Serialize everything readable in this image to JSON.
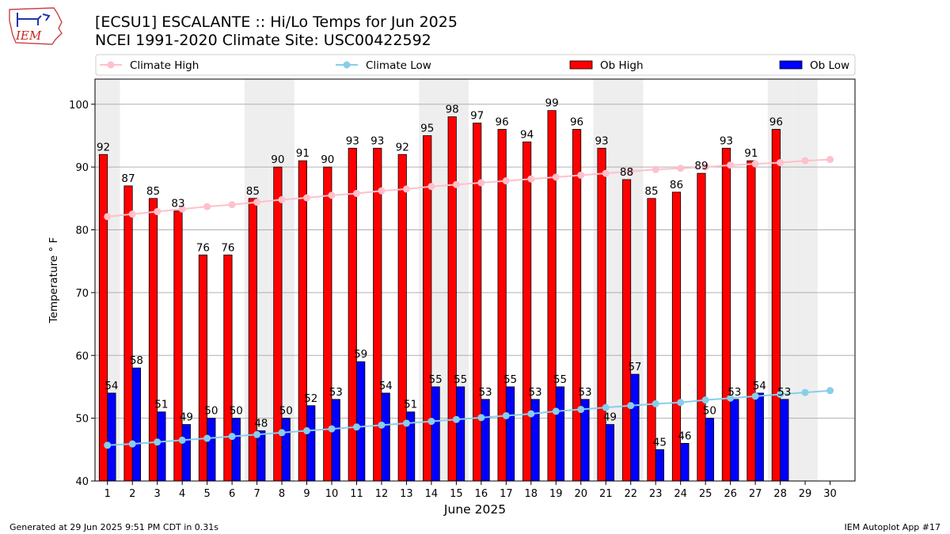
{
  "header": {
    "title_line1": "[ECSU1] ESCALANTE :: Hi/Lo Temps for Jun 2025",
    "title_line2": "NCEI 1991-2020 Climate Site: USC00422592"
  },
  "logo": {
    "text": "IEM",
    "icon": "iem-iowa-logo"
  },
  "footer": {
    "generated": "Generated at 29 Jun 2025 9:51 PM CDT in 0.31s",
    "app": "IEM Autoplot App #17"
  },
  "colors": {
    "ob_high": "#ff0000",
    "ob_low": "#0000ff",
    "climate_high": "#ffc0cb",
    "climate_low": "#87ceeb",
    "weekend_shade": "#eeeeee",
    "grid": "#b0b0b0"
  },
  "chart_data": {
    "type": "bar",
    "xlabel": "June 2025",
    "ylabel": "Temperature ° F",
    "ylim": [
      40,
      104
    ],
    "yticks": [
      40,
      50,
      60,
      70,
      80,
      90,
      100
    ],
    "grid": "horizontal",
    "legend_position": "top",
    "categories": [
      "1",
      "2",
      "3",
      "4",
      "5",
      "6",
      "7",
      "8",
      "9",
      "10",
      "11",
      "12",
      "13",
      "14",
      "15",
      "16",
      "17",
      "18",
      "19",
      "20",
      "21",
      "22",
      "23",
      "24",
      "25",
      "26",
      "27",
      "28",
      "29",
      "30"
    ],
    "shaded_days": [
      1,
      7,
      8,
      14,
      15,
      21,
      22,
      28,
      29
    ],
    "series": [
      {
        "name": "Ob High",
        "kind": "bar",
        "color": "#ff0000",
        "values": [
          92,
          87,
          85,
          83,
          76,
          76,
          85,
          90,
          91,
          90,
          93,
          93,
          92,
          95,
          98,
          97,
          96,
          94,
          99,
          96,
          93,
          88,
          85,
          86,
          89,
          93,
          91,
          96,
          null,
          null
        ]
      },
      {
        "name": "Ob Low",
        "kind": "bar",
        "color": "#0000ff",
        "values": [
          54,
          58,
          51,
          49,
          50,
          50,
          48,
          50,
          52,
          53,
          59,
          54,
          51,
          55,
          55,
          53,
          55,
          53,
          55,
          53,
          49,
          57,
          45,
          46,
          50,
          53,
          54,
          53,
          null,
          null
        ]
      },
      {
        "name": "Climate High",
        "kind": "line",
        "color": "#ffc0cb",
        "values": [
          82.1,
          82.5,
          82.9,
          83.3,
          83.7,
          84.0,
          84.4,
          84.8,
          85.1,
          85.5,
          85.8,
          86.2,
          86.5,
          86.9,
          87.2,
          87.5,
          87.8,
          88.1,
          88.4,
          88.7,
          89.0,
          89.3,
          89.6,
          89.8,
          90.0,
          90.3,
          90.5,
          90.7,
          91.0,
          91.2
        ]
      },
      {
        "name": "Climate Low",
        "kind": "line",
        "color": "#87ceeb",
        "values": [
          45.7,
          45.9,
          46.2,
          46.5,
          46.8,
          47.1,
          47.4,
          47.7,
          48.0,
          48.3,
          48.6,
          48.9,
          49.2,
          49.5,
          49.8,
          50.1,
          50.4,
          50.7,
          51.1,
          51.4,
          51.7,
          52.0,
          52.3,
          52.5,
          52.9,
          53.2,
          53.5,
          53.8,
          54.1,
          54.4
        ]
      }
    ]
  }
}
